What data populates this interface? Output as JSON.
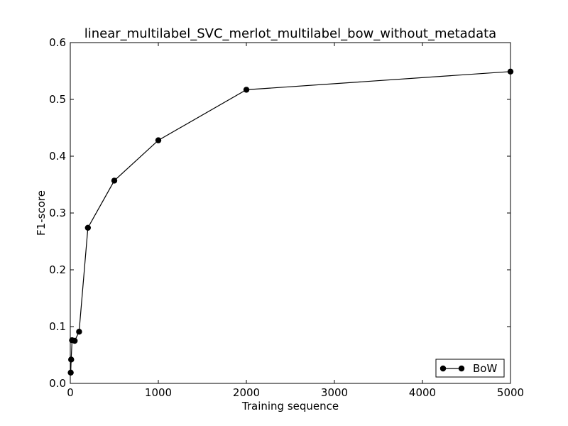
{
  "chart_data": {
    "type": "line",
    "title": "linear_multilabel_SVC_merlot_multilabel_bow_without_metadata",
    "xlabel": "Training sequence",
    "ylabel": "F1-score",
    "xlim": [
      0,
      5000
    ],
    "ylim": [
      0,
      0.6
    ],
    "xticks": [
      0,
      1000,
      2000,
      3000,
      4000,
      5000
    ],
    "xtick_labels": [
      "0",
      "1000",
      "2000",
      "3000",
      "4000",
      "5000"
    ],
    "yticks": [
      0,
      0.1,
      0.2,
      0.3,
      0.4,
      0.5,
      0.6
    ],
    "ytick_labels": [
      "0.0",
      "0.1",
      "0.2",
      "0.3",
      "0.4",
      "0.5",
      "0.6"
    ],
    "grid": false,
    "legend_position": "lower-right",
    "series": [
      {
        "name": "BoW",
        "color": "#000000",
        "marker": "circle",
        "x": [
          5,
          10,
          20,
          50,
          100,
          200,
          500,
          1000,
          2000,
          5000
        ],
        "y": [
          0.019,
          0.042,
          0.076,
          0.075,
          0.091,
          0.274,
          0.357,
          0.428,
          0.517,
          0.549
        ]
      }
    ]
  }
}
